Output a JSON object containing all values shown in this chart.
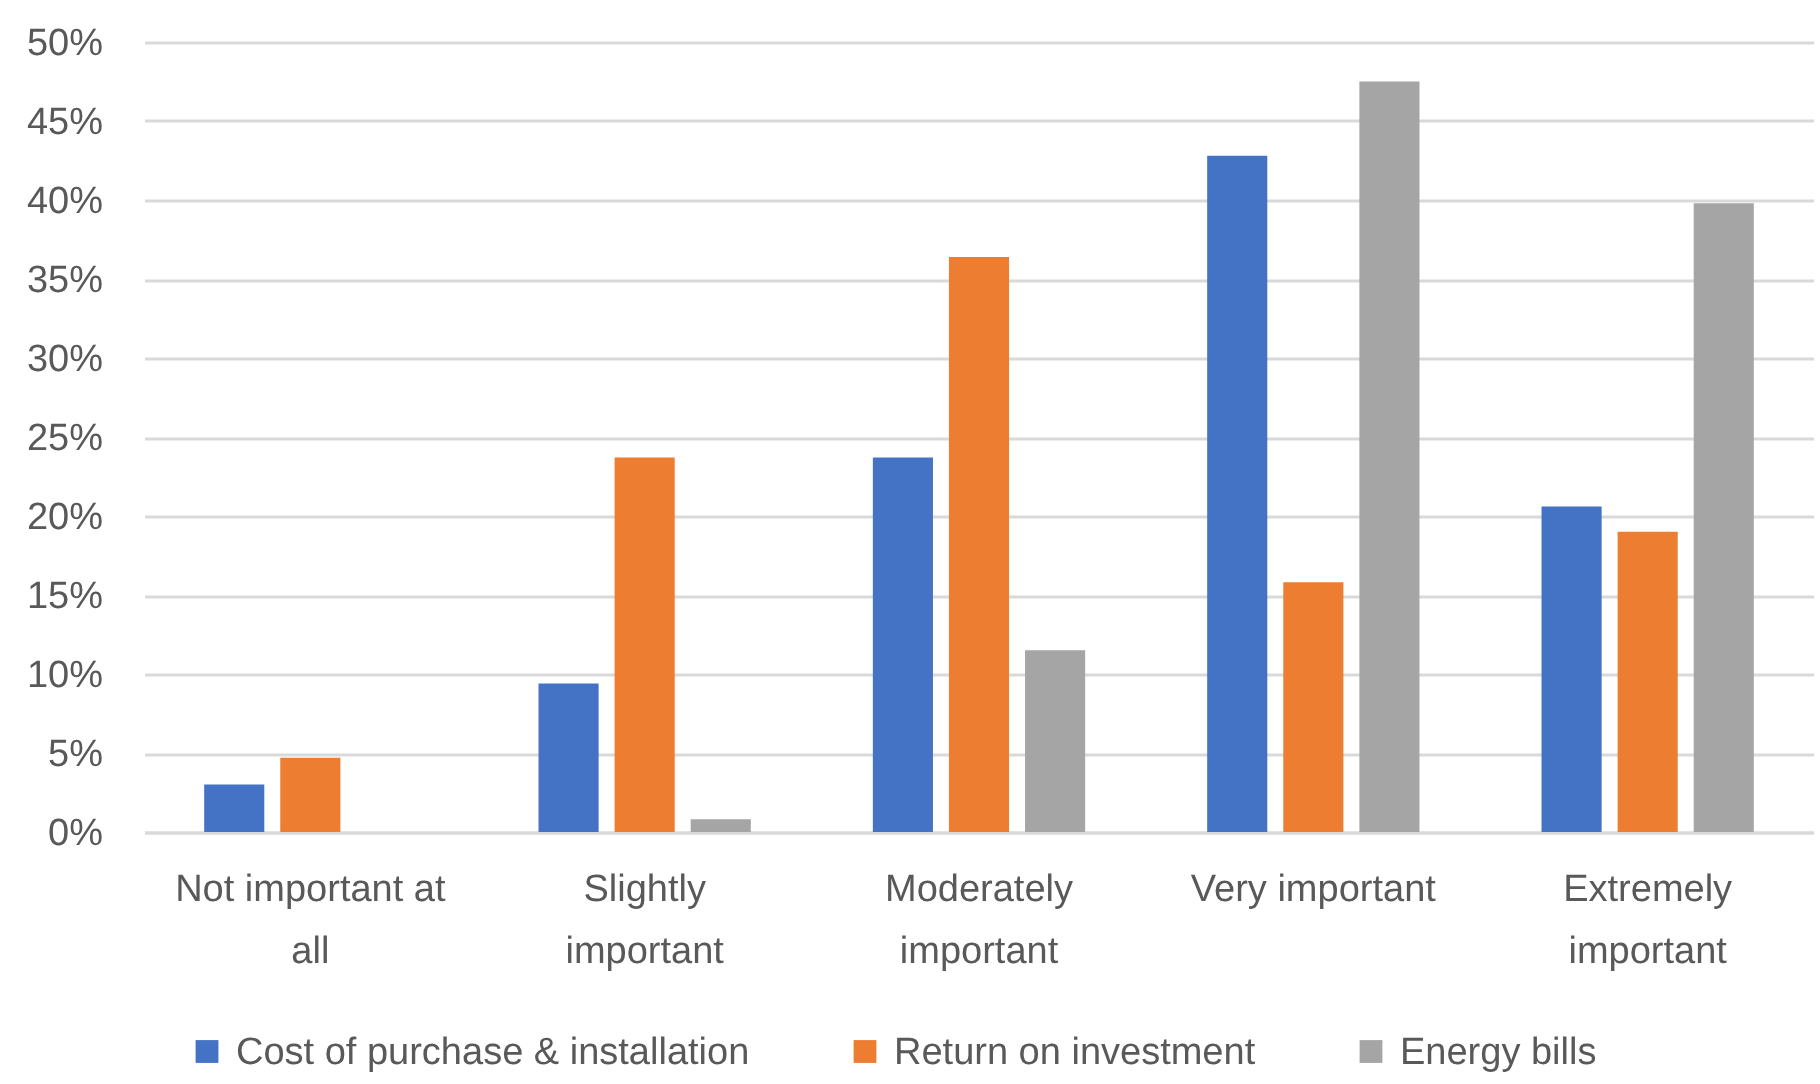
{
  "chart_data": {
    "type": "bar",
    "categories": [
      "Not important at all",
      "Slightly important",
      "Moderately important",
      "Very important",
      "Extremely important"
    ],
    "series": [
      {
        "name": "Cost of purchase & installation",
        "color": "#4472c4",
        "values": [
          3.0,
          9.4,
          23.7,
          42.8,
          20.6
        ]
      },
      {
        "name": "Return on investment",
        "color": "#ed7d31",
        "values": [
          4.7,
          23.7,
          36.4,
          15.8,
          19.0
        ]
      },
      {
        "name": "Energy bills",
        "color": "#a5a5a5",
        "values": [
          null,
          0.8,
          11.5,
          47.5,
          39.8
        ]
      }
    ],
    "ylim": [
      0,
      50
    ],
    "yticks": [
      {
        "value": 0,
        "label": "0%"
      },
      {
        "value": 5,
        "label": "5%"
      },
      {
        "value": 10,
        "label": "10%"
      },
      {
        "value": 15,
        "label": "15%"
      },
      {
        "value": 20,
        "label": "20%"
      },
      {
        "value": 25,
        "label": "25%"
      },
      {
        "value": 30,
        "label": "30%"
      },
      {
        "value": 35,
        "label": "35%"
      },
      {
        "value": 40,
        "label": "40%"
      },
      {
        "value": 45,
        "label": "45%"
      },
      {
        "value": 50,
        "label": "50%"
      }
    ],
    "grid": "y",
    "legend": "bottom"
  }
}
